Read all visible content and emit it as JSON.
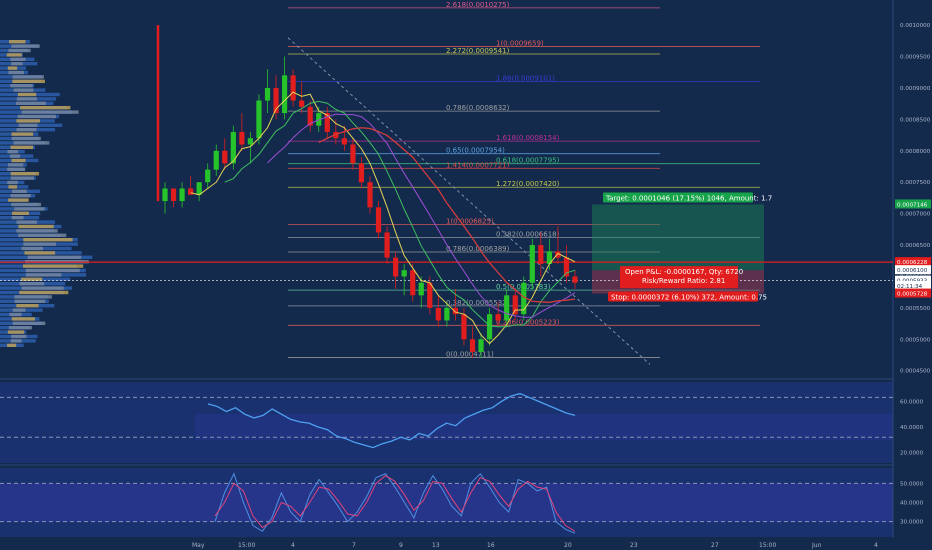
{
  "price_axis": {
    "labels": [
      "0.0010000",
      "0.0009500",
      "0.0009000",
      "0.0008500",
      "0.0008000",
      "0.0007500",
      "0.0007000",
      "0.0006500",
      "0.0006000",
      "0.0005500",
      "0.0005000",
      "0.0004500"
    ],
    "values": [
      0.001,
      0.00095,
      0.0009,
      0.00085,
      0.0008,
      0.00075,
      0.0007,
      0.00065,
      0.0006,
      0.00055,
      0.0005,
      0.00045
    ],
    "price_tags": [
      {
        "label": "0.0007146",
        "value": 0.0007146,
        "color": "#16a34a"
      },
      {
        "label": "0.0006228",
        "value": 0.0006228,
        "color": "#e11d1d"
      },
      {
        "label": "0.0006100",
        "value": 0.00061,
        "color": "#ffffff"
      },
      {
        "label": "0.0005933",
        "value": 0.0005933,
        "color": "#ffffff"
      },
      {
        "label": "02:11:34",
        "value": 0.000585,
        "color": "#ffffff"
      },
      {
        "label": "0.0005728",
        "value": 0.0005728,
        "color": "#e11d1d"
      }
    ]
  },
  "rsi_axis": {
    "labels": [
      "60.0000",
      "40.0000",
      "20.0000"
    ],
    "values": [
      60,
      40,
      20
    ]
  },
  "stoch_axis": {
    "labels": [
      "50.0000",
      "40.0000",
      "30.0000"
    ],
    "values": [
      50,
      40,
      30
    ]
  },
  "time_axis": {
    "labels": [
      "May",
      "15:00",
      "4",
      "7",
      "9",
      "13",
      "16",
      "20",
      "23",
      "27",
      "15:00",
      "Jun",
      "4"
    ]
  },
  "fib_levels": [
    {
      "label": "2.618(0.0010275)",
      "value": 0.0010275,
      "color": "#e05a8a"
    },
    {
      "label": "1(0.0009659)",
      "value": 0.0009659,
      "color": "#e05a5a"
    },
    {
      "label": "2.272(0.0009541)",
      "value": 0.0009541,
      "color": "#c7c751"
    },
    {
      "label": "1.88(0.0009101)",
      "value": 0.0009101,
      "color": "#3b3bd4"
    },
    {
      "label": "0.786(0.0008632)",
      "value": 0.0008632,
      "color": "#a0a0a0"
    },
    {
      "label": "1.618(0.0008154)",
      "value": 0.0008154,
      "color": "#c0309a"
    },
    {
      "label": "0.65(0.0007954)",
      "value": 0.0007954,
      "color": "#5aa0e0"
    },
    {
      "label": "0.618(0.0007795)",
      "value": 0.0007795,
      "color": "#3fbf7f"
    },
    {
      "label": "1.414(0.0007721)",
      "value": 0.0007721,
      "color": "#d04a4a"
    },
    {
      "label": "1.272(0.0007420)",
      "value": 0.000742,
      "color": "#c7c751"
    },
    {
      "label": "1(0.0006825)",
      "value": 0.0006825,
      "color": "#e05a5a"
    },
    {
      "label": "0.382(0.0006618)",
      "value": 0.0006618,
      "color": "#9aa0a8"
    },
    {
      "label": "0.786(0.0006389)",
      "value": 0.0006389,
      "color": "#a0a0a0"
    },
    {
      "label": "0.5(0.0005783)",
      "value": 0.0005783,
      "color": "#5fcf9f"
    },
    {
      "label": "0.382(0.0005532)",
      "value": 0.0005532,
      "color": "#9aa0a8"
    },
    {
      "label": "0.236(0.0005223)",
      "value": 0.0005223,
      "color": "#e05a5a"
    },
    {
      "label": "0(0.0004711)",
      "value": 0.0004711,
      "color": "#a0a0a0"
    }
  ],
  "trade": {
    "target_label": "Target: 0.0001046 (17.15%) 1046, Amount: 1.7",
    "pnl_label": "Open P&L: -0.0000167, Qty: 6720",
    "rr_label": "Risk/Reward Ratio: 2.81",
    "stop_label": "Stop: 0.0000372 (6.10%) 372, Amount: 0.75",
    "entry": 0.00061,
    "target": 0.0007146,
    "stop": 0.0005728,
    "current": 0.0005933
  },
  "chart_data": [
    {
      "type": "candlestick",
      "ohlc": [
        [
          0.00072,
          0.00075,
          0.0007,
          0.00074
        ],
        [
          0.00074,
          0.00074,
          0.00071,
          0.00072
        ],
        [
          0.00072,
          0.00075,
          0.00071,
          0.00074
        ],
        [
          0.00074,
          0.00076,
          0.00073,
          0.00073
        ],
        [
          0.00073,
          0.00075,
          0.00072,
          0.00075
        ],
        [
          0.00075,
          0.00078,
          0.00074,
          0.00077
        ],
        [
          0.00077,
          0.00081,
          0.00076,
          0.0008
        ],
        [
          0.0008,
          0.00082,
          0.00077,
          0.00078
        ],
        [
          0.00078,
          0.00084,
          0.00077,
          0.00083
        ],
        [
          0.00083,
          0.00086,
          0.0008,
          0.00081
        ],
        [
          0.00081,
          0.00083,
          0.00078,
          0.00082
        ],
        [
          0.00082,
          0.00089,
          0.00081,
          0.00088
        ],
        [
          0.00088,
          0.00093,
          0.00086,
          0.0009
        ],
        [
          0.0009,
          0.00092,
          0.00085,
          0.00086
        ],
        [
          0.00086,
          0.00095,
          0.00085,
          0.00092
        ],
        [
          0.00092,
          0.00093,
          0.00087,
          0.00088
        ],
        [
          0.00088,
          0.00091,
          0.00086,
          0.00087
        ],
        [
          0.00087,
          0.00088,
          0.00083,
          0.00084
        ],
        [
          0.00084,
          0.00087,
          0.00083,
          0.00086
        ],
        [
          0.00086,
          0.00087,
          0.00082,
          0.00083
        ],
        [
          0.00083,
          0.00085,
          0.00081,
          0.00082
        ],
        [
          0.00082,
          0.00084,
          0.0008,
          0.00081
        ],
        [
          0.00081,
          0.00082,
          0.00077,
          0.00078
        ],
        [
          0.00078,
          0.00079,
          0.00074,
          0.00075
        ],
        [
          0.00075,
          0.00076,
          0.0007,
          0.00071
        ],
        [
          0.00071,
          0.00072,
          0.00066,
          0.00067
        ],
        [
          0.00067,
          0.00068,
          0.00062,
          0.00063
        ],
        [
          0.00063,
          0.00064,
          0.00058,
          0.0006
        ],
        [
          0.0006,
          0.00062,
          0.00057,
          0.00061
        ],
        [
          0.00061,
          0.00062,
          0.00056,
          0.00057
        ],
        [
          0.00057,
          0.0006,
          0.00055,
          0.00059
        ],
        [
          0.00059,
          0.0006,
          0.00054,
          0.00055
        ],
        [
          0.00055,
          0.00057,
          0.00052,
          0.00053
        ],
        [
          0.00053,
          0.00056,
          0.00052,
          0.00055
        ],
        [
          0.00055,
          0.00058,
          0.00053,
          0.00054
        ],
        [
          0.00054,
          0.00055,
          0.00049,
          0.0005
        ],
        [
          0.0005,
          0.00052,
          0.00047,
          0.00048
        ],
        [
          0.00048,
          0.00051,
          0.00047,
          0.0005
        ],
        [
          0.0005,
          0.00055,
          0.00049,
          0.00054
        ],
        [
          0.00054,
          0.00056,
          0.00052,
          0.00053
        ],
        [
          0.00053,
          0.00058,
          0.00052,
          0.00057
        ],
        [
          0.00057,
          0.00058,
          0.00053,
          0.00054
        ],
        [
          0.00054,
          0.0006,
          0.00053,
          0.00059
        ],
        [
          0.00059,
          0.00066,
          0.00058,
          0.00065
        ],
        [
          0.00065,
          0.00067,
          0.0006,
          0.00062
        ],
        [
          0.00062,
          0.00066,
          0.00061,
          0.00064
        ],
        [
          0.00064,
          0.00068,
          0.00062,
          0.00063
        ],
        [
          0.00063,
          0.00065,
          0.00059,
          0.0006
        ],
        [
          0.0006,
          0.00061,
          0.00058,
          0.00059
        ]
      ]
    },
    {
      "type": "line",
      "title": "RSI",
      "values": [
        58,
        56,
        52,
        55,
        50,
        47,
        49,
        54,
        50,
        46,
        44,
        43,
        40,
        38,
        33,
        31,
        28,
        26,
        24,
        27,
        29,
        32,
        30,
        35,
        33,
        39,
        43,
        41,
        47,
        50,
        53,
        55,
        60,
        64,
        66,
        63,
        60,
        57,
        54,
        51,
        49
      ]
    },
    {
      "type": "line",
      "title": "Stochastic RSI",
      "series": [
        {
          "color": "#4f8fe0",
          "values": [
            30,
            45,
            55,
            40,
            28,
            25,
            32,
            45,
            35,
            30,
            44,
            52,
            45,
            38,
            30,
            35,
            43,
            53,
            55,
            48,
            40,
            32,
            45,
            54,
            47,
            38,
            33,
            50,
            55,
            48,
            40,
            35,
            52,
            50,
            46,
            48,
            30,
            26,
            24
          ]
        },
        {
          "color": "#e0447a",
          "values": [
            33,
            40,
            50,
            46,
            33,
            27,
            30,
            40,
            38,
            33,
            40,
            48,
            47,
            41,
            34,
            33,
            40,
            50,
            54,
            51,
            44,
            36,
            41,
            51,
            50,
            42,
            35,
            45,
            53,
            51,
            44,
            38,
            47,
            51,
            48,
            47,
            35,
            28,
            25
          ]
        }
      ]
    }
  ]
}
